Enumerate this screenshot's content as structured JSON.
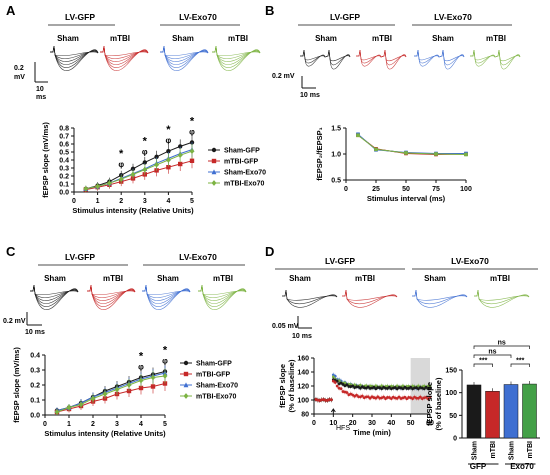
{
  "colors": {
    "black": "#1a1a1a",
    "red": "#c62828",
    "blue": "#3f6fd1",
    "green": "#7cb342",
    "gray": "#d9d9d9"
  },
  "panels": {
    "A": {
      "label": "A",
      "header_left": "LV-GFP",
      "header_right": "LV-Exo70",
      "traces": [
        "Sham",
        "mTBI",
        "Sham",
        "mTBI"
      ],
      "scale_v": "0.2",
      "scale_v_unit": "mV",
      "scale_t": "10",
      "scale_t_unit": "ms"
    },
    "B": {
      "label": "B",
      "header_left": "LV-GFP",
      "header_right": "LV-Exo70",
      "traces": [
        "Sham",
        "mTBI",
        "Sham",
        "mTBI"
      ],
      "scale_v": "0.2 mV",
      "scale_t": "10 ms"
    },
    "C": {
      "label": "C",
      "header_left": "LV-GFP",
      "header_right": "LV-Exo70",
      "traces": [
        "Sham",
        "mTBI",
        "Sham",
        "mTBI"
      ],
      "scale_v": "0.2 mV",
      "scale_t": "10 ms"
    },
    "D": {
      "label": "D",
      "header_left": "LV-GFP",
      "header_right": "LV-Exo70",
      "traces": [
        "Sham",
        "mTBI",
        "Sham",
        "mTBI"
      ],
      "scale_v": "0.05 mV",
      "scale_t": "10 ms",
      "hfs": "HFS",
      "group_gfp": "GFP",
      "group_exo": "Exo70",
      "sig": [
        "***",
        "***",
        "ns",
        "ns"
      ]
    }
  },
  "chart_data": [
    {
      "id": "A",
      "type": "line",
      "xlabel": "Stimulus intensity (Relative Units)",
      "ylabel": "fEPSP slope (mV/ms)",
      "xlim": [
        0,
        5
      ],
      "ylim": [
        0,
        0.8
      ],
      "xticks": [
        "0",
        "1",
        "2",
        "3",
        "4",
        "5"
      ],
      "yticks": [
        "0.0",
        "0.1",
        "0.2",
        "0.3",
        "0.4",
        "0.5",
        "0.6",
        "0.7",
        "0.8"
      ],
      "x": [
        0.5,
        1,
        1.5,
        2,
        2.5,
        3,
        3.5,
        4,
        4.5,
        5
      ],
      "series": [
        {
          "name": "Sham-GFP",
          "color": "#1a1a1a",
          "marker": "circle",
          "values": [
            0.04,
            0.08,
            0.13,
            0.21,
            0.29,
            0.37,
            0.44,
            0.51,
            0.57,
            0.62
          ]
        },
        {
          "name": "mTBI-GFP",
          "color": "#c62828",
          "marker": "square",
          "values": [
            0.03,
            0.06,
            0.09,
            0.13,
            0.17,
            0.22,
            0.27,
            0.31,
            0.35,
            0.39
          ]
        },
        {
          "name": "Sham-Exo70",
          "color": "#3f6fd1",
          "marker": "triangle",
          "values": [
            0.04,
            0.07,
            0.11,
            0.17,
            0.23,
            0.29,
            0.36,
            0.42,
            0.48,
            0.53
          ]
        },
        {
          "name": "mTBI-Exo70",
          "color": "#7cb342",
          "marker": "diamond",
          "values": [
            0.04,
            0.07,
            0.11,
            0.16,
            0.22,
            0.28,
            0.34,
            0.4,
            0.46,
            0.51
          ]
        }
      ],
      "annotations": [
        {
          "x": 2,
          "text": "*"
        },
        {
          "x": 2,
          "text": "φ"
        },
        {
          "x": 3,
          "text": "*"
        },
        {
          "x": 3,
          "text": "φ"
        },
        {
          "x": 4,
          "text": "*"
        },
        {
          "x": 4,
          "text": "φ"
        },
        {
          "x": 5,
          "text": "*"
        },
        {
          "x": 5,
          "text": "φ"
        }
      ],
      "legend": "right"
    },
    {
      "id": "B",
      "type": "line",
      "xlabel": "Stimulus interval (ms)",
      "ylabel": "fEPSP₂/fEPSP₁",
      "xlim": [
        0,
        100
      ],
      "ylim": [
        0.5,
        1.5
      ],
      "xticks": [
        "0",
        "25",
        "50",
        "75",
        "100"
      ],
      "yticks": [
        "0.5",
        "1.0",
        "1.5"
      ],
      "x": [
        10,
        25,
        50,
        75,
        100
      ],
      "series": [
        {
          "name": "Sham-GFP",
          "color": "#1a1a1a",
          "values": [
            1.37,
            1.09,
            1.02,
            1.0,
            1.0
          ]
        },
        {
          "name": "mTBI-GFP",
          "color": "#c62828",
          "values": [
            1.36,
            1.1,
            1.01,
            0.99,
            1.0
          ]
        },
        {
          "name": "Sham-Exo70",
          "color": "#3f6fd1",
          "values": [
            1.38,
            1.08,
            1.03,
            1.01,
            1.01
          ]
        },
        {
          "name": "mTBI-Exo70",
          "color": "#7cb342",
          "values": [
            1.36,
            1.09,
            1.02,
            1.0,
            0.99
          ]
        }
      ]
    },
    {
      "id": "C",
      "type": "line",
      "xlabel": "Stimulus intensity (Relative Units)",
      "ylabel": "fEPSP slope (mV/ms)",
      "xlim": [
        0,
        5
      ],
      "ylim": [
        0,
        0.4
      ],
      "xticks": [
        "0",
        "1",
        "2",
        "3",
        "4",
        "5"
      ],
      "yticks": [
        "0.0",
        "0.1",
        "0.2",
        "0.3",
        "0.4"
      ],
      "x": [
        0.5,
        1,
        1.5,
        2,
        2.5,
        3,
        3.5,
        4,
        4.5,
        5
      ],
      "series": [
        {
          "name": "Sham-GFP",
          "color": "#1a1a1a",
          "marker": "circle",
          "values": [
            0.03,
            0.05,
            0.08,
            0.12,
            0.16,
            0.19,
            0.22,
            0.25,
            0.27,
            0.29
          ]
        },
        {
          "name": "mTBI-GFP",
          "color": "#c62828",
          "marker": "square",
          "values": [
            0.02,
            0.04,
            0.06,
            0.09,
            0.11,
            0.14,
            0.16,
            0.18,
            0.19,
            0.21
          ]
        },
        {
          "name": "Sham-Exo70",
          "color": "#3f6fd1",
          "marker": "triangle",
          "values": [
            0.03,
            0.05,
            0.08,
            0.12,
            0.15,
            0.18,
            0.21,
            0.24,
            0.26,
            0.28
          ]
        },
        {
          "name": "mTBI-Exo70",
          "color": "#7cb342",
          "marker": "diamond",
          "values": [
            0.02,
            0.05,
            0.07,
            0.11,
            0.14,
            0.17,
            0.2,
            0.23,
            0.25,
            0.26
          ]
        }
      ],
      "annotations": [
        {
          "x": 4,
          "text": "*"
        },
        {
          "x": 4,
          "text": "φ"
        },
        {
          "x": 5,
          "text": "*"
        },
        {
          "x": 5,
          "text": "φ"
        }
      ],
      "legend": "right"
    },
    {
      "id": "D-time",
      "type": "scatter",
      "xlabel": "Time (min)",
      "ylabel": "fEPSP slope (% of baseline)",
      "xlim": [
        0,
        60
      ],
      "ylim": [
        80,
        160
      ],
      "xticks": [
        "0",
        "10",
        "20",
        "30",
        "40",
        "50",
        "60"
      ],
      "yticks": [
        "80",
        "100",
        "120",
        "140",
        "160"
      ],
      "shaded_region": [
        50,
        60
      ],
      "hfs_time": 10,
      "series": [
        {
          "name": "Sham-GFP",
          "color": "#1a1a1a",
          "baseline": 100,
          "peak": 130,
          "plateau": 117
        },
        {
          "name": "mTBI-GFP",
          "color": "#c62828",
          "baseline": 100,
          "peak": 128,
          "plateau": 103
        },
        {
          "name": "Sham-Exo70",
          "color": "#3f6fd1",
          "baseline": 100,
          "peak": 136,
          "plateau": 118
        },
        {
          "name": "mTBI-Exo70",
          "color": "#7cb342",
          "baseline": 100,
          "peak": 132,
          "plateau": 119
        }
      ]
    },
    {
      "id": "D-bar",
      "type": "bar",
      "ylabel": "fEPSP slope (% of baseline)",
      "ylim": [
        0,
        150
      ],
      "yticks": [
        "0",
        "50",
        "100",
        "150"
      ],
      "categories": [
        "Sham",
        "mTBI",
        "Sham",
        "mTBI"
      ],
      "values": [
        117,
        103,
        118,
        119
      ],
      "colors": [
        "#1a1a1a",
        "#c62828",
        "#3f6fd1",
        "#43a047"
      ]
    }
  ]
}
